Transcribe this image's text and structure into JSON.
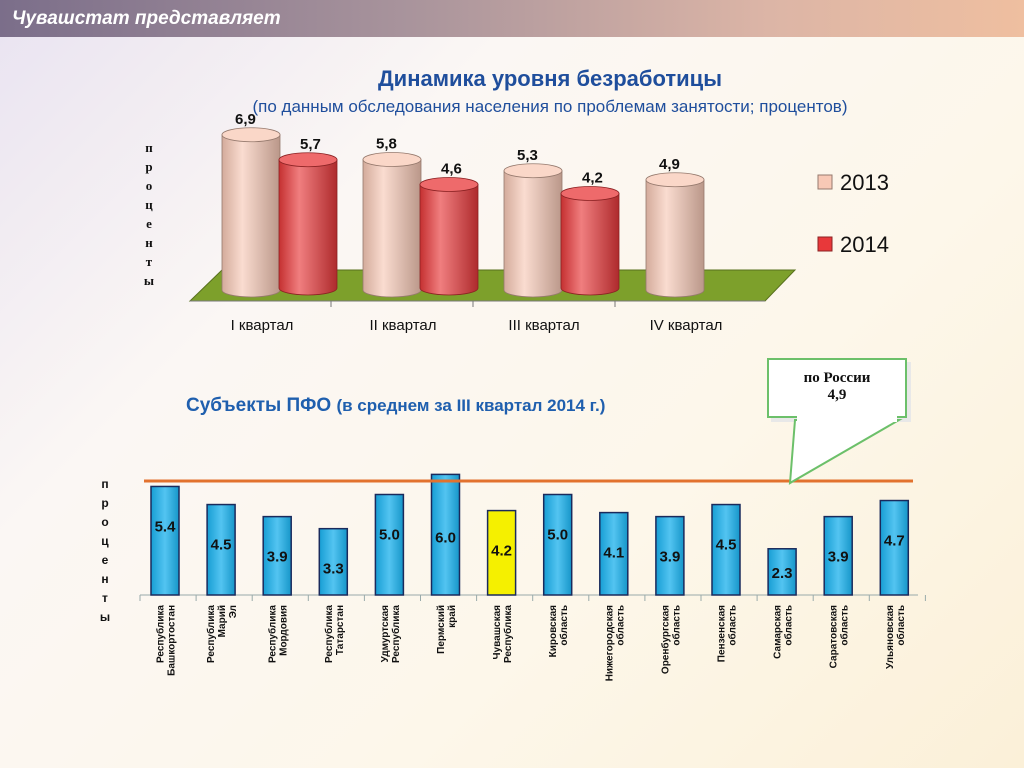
{
  "header": {
    "title": "Чувашстат представляет"
  },
  "chart_data": [
    {
      "type": "bar",
      "title": "Динамика уровня безработицы",
      "subtitle": "(по данным обследования населения по проблемам занятости; процентов)",
      "ylabel": "проценты",
      "categories": [
        "I квартал",
        "II квартал",
        "III квартал",
        "IV квартал"
      ],
      "series": [
        {
          "name": "2013",
          "values": [
            6.9,
            5.8,
            5.3,
            4.9
          ],
          "labels": [
            "6,9",
            "5,8",
            "5,3",
            "4,9"
          ],
          "color": "#f8c9b6"
        },
        {
          "name": "2014",
          "values": [
            5.7,
            4.6,
            4.2,
            null
          ],
          "labels": [
            "5,7",
            "4,6",
            "4,2",
            ""
          ],
          "color": "#e8383a"
        }
      ],
      "legend_position": "right",
      "floor_color": "#7da02b"
    },
    {
      "type": "bar",
      "title": "Субъекты ПФО",
      "title_suffix": "(в среднем за III квартал 2014 г.)",
      "ylabel": "проценты",
      "categories": [
        "Республика Башкортостан",
        "Республика Марий Эл",
        "Республика Мордовия",
        "Республика Татарстан",
        "Удмуртская Республика",
        "Пермский край",
        "Чувашская Республика",
        "Кировская область",
        "Нижегородская область",
        "Оренбургская область",
        "Пензенская область",
        "Самарская область",
        "Саратовская область",
        "Ульяновская область"
      ],
      "values": [
        5.4,
        4.5,
        3.9,
        3.3,
        5.0,
        6.0,
        4.2,
        5.0,
        4.1,
        3.9,
        4.5,
        2.3,
        3.9,
        4.7
      ],
      "labels": [
        "5.4",
        "4.5",
        "3.9",
        "3.3",
        "5.0",
        "6.0",
        "4.2",
        "5.0",
        "4.1",
        "3.9",
        "4.5",
        "2.3",
        "3.9",
        "4.7"
      ],
      "bar_color": "#1ab0ec",
      "highlight_category": "Чувашская Республика",
      "highlight_color": "#f5f000",
      "reference_line": {
        "label": "по России",
        "value_label": "4,9",
        "value": 4.9,
        "color": "#e2722e"
      }
    }
  ]
}
